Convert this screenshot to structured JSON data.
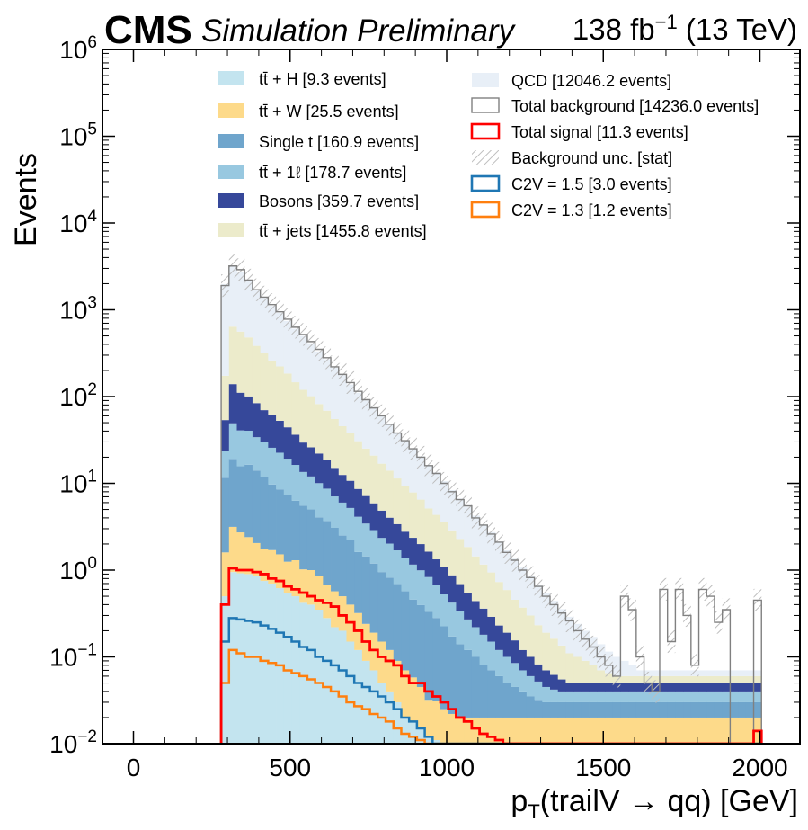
{
  "header": {
    "experiment": "CMS",
    "status": "Simulation Preliminary",
    "lumi_value": "138 fb",
    "lumi_exp": "−1",
    "energy": " (13 TeV)"
  },
  "chart_data": {
    "type": "bar",
    "stacked": true,
    "xlabel": "p_T(trailV → qq) [GeV]",
    "ylabel": "Events",
    "xlim": [
      -100,
      2090
    ],
    "ylim": [
      0.01,
      1000000
    ],
    "yscale": "log",
    "xticks": [
      0,
      500,
      1000,
      1500,
      2000
    ],
    "ytick_exponents": [
      -2,
      -1,
      0,
      1,
      2,
      3,
      4,
      5,
      6
    ],
    "legend_placement": "top, two columns",
    "bin_width": 25,
    "bin_start": 280,
    "colors": {
      "ttH": "#c3e4ef",
      "ttW": "#fdda8a",
      "singlet": "#6fa5cc",
      "ttl": "#98c8e0",
      "bosons": "#36489a",
      "ttjets": "#ecebcb",
      "qcd": "#e8eff7",
      "total_bkg": "#808080",
      "total_sig": "#ff0000",
      "c2v15": "#1f77b4",
      "c2v13": "#ff7f0e",
      "unc": "#c8c8c8"
    },
    "series": [
      {
        "name": "tt̄ + H [9.3 events]",
        "key": "ttH",
        "values": [
          0.5,
          0.95,
          0.92,
          0.9,
          0.85,
          0.75,
          0.7,
          0.62,
          0.55,
          0.5,
          0.42,
          0.4,
          0.35,
          0.28,
          0.22,
          0.2,
          0.15,
          0.12,
          0.09,
          0.07,
          0.05,
          0.04,
          0.03,
          0.02,
          0.018,
          0.015,
          0.012,
          0.011,
          0.01,
          0.01,
          0.01,
          0.01,
          0.01,
          0.01,
          0.01,
          0.01,
          0.01,
          0.01,
          0.01,
          0.01,
          0.01,
          0.01,
          0.01,
          0.01,
          0.01,
          0.01,
          0.01,
          0.01,
          0.01,
          0.01,
          0.01,
          0.01,
          0.01,
          0.01,
          0.01,
          0.01,
          0.01,
          0.01,
          0.01,
          0.01,
          0.01,
          0.01,
          0.01,
          0.01,
          0.01,
          0.01,
          0.01,
          0.01,
          0.01
        ]
      },
      {
        "name": "tt̄ + W [25.5 events]",
        "key": "ttW",
        "values": [
          1.1,
          2.2,
          1.8,
          1.5,
          1.2,
          1.0,
          1.0,
          0.9,
          0.7,
          0.8,
          0.6,
          0.6,
          0.5,
          0.4,
          0.35,
          0.3,
          0.25,
          0.2,
          0.15,
          0.12,
          0.1,
          0.08,
          0.06,
          0.05,
          0.04,
          0.03,
          0.02,
          0.02,
          0.015,
          0.012,
          0.01,
          0.01,
          0.01,
          0.01,
          0.01,
          0.01,
          0.01,
          0.01,
          0.01,
          0.01,
          0.01,
          0.01,
          0.01,
          0.01,
          0.01,
          0.01,
          0.01,
          0.01,
          0.01,
          0.01,
          0.01,
          0.01,
          0.01,
          0.01,
          0.01,
          0.01,
          0.01,
          0.01,
          0.01,
          0.01,
          0.01,
          0.01,
          0.01,
          0.01,
          0.01,
          0.01,
          0.01,
          0.01,
          0.01
        ]
      },
      {
        "name": "Single t [160.9 events]",
        "key": "singlet",
        "values": [
          10,
          16,
          13,
          14,
          12,
          10,
          8,
          7,
          6,
          5,
          4.5,
          4,
          3.2,
          3,
          2.5,
          2,
          1.8,
          1.3,
          1.2,
          1.0,
          0.8,
          0.7,
          0.6,
          0.5,
          0.4,
          0.35,
          0.3,
          0.25,
          0.2,
          0.15,
          0.12,
          0.1,
          0.08,
          0.06,
          0.05,
          0.04,
          0.03,
          0.025,
          0.02,
          0.015,
          0.012,
          0.01,
          0.01,
          0.01,
          0.01,
          0.01,
          0.01,
          0.01,
          0.01,
          0.01,
          0.01,
          0.01,
          0.01,
          0.01,
          0.01,
          0.01,
          0.01,
          0.01,
          0.01,
          0.01,
          0.01,
          0.01,
          0.01,
          0.01,
          0.01,
          0.01,
          0.01,
          0.01,
          0.01
        ]
      },
      {
        "name": "tt̄ + 1ℓ [178.7 events]",
        "key": "ttl",
        "values": [
          12,
          30,
          25,
          24,
          20,
          18,
          16,
          14,
          12,
          10,
          8,
          7,
          6,
          5,
          4,
          3.5,
          3,
          2.5,
          2,
          1.7,
          1.4,
          1.2,
          1.0,
          0.8,
          0.7,
          0.6,
          0.5,
          0.4,
          0.3,
          0.25,
          0.2,
          0.15,
          0.12,
          0.1,
          0.08,
          0.06,
          0.05,
          0.04,
          0.03,
          0.025,
          0.02,
          0.015,
          0.012,
          0.01,
          0.01,
          0.01,
          0.01,
          0.01,
          0.01,
          0.01,
          0.01,
          0.01,
          0.01,
          0.01,
          0.01,
          0.01,
          0.01,
          0.01,
          0.01,
          0.01,
          0.01,
          0.01,
          0.01,
          0.01,
          0.01,
          0.01,
          0.01,
          0.01,
          0.01
        ]
      },
      {
        "name": "Bosons [359.7 events]",
        "key": "bosons",
        "values": [
          30,
          90,
          70,
          60,
          50,
          40,
          35,
          30,
          25,
          20,
          16,
          14,
          12,
          10,
          8,
          6.5,
          5.5,
          4.5,
          3.7,
          3.0,
          2.5,
          2.0,
          1.7,
          1.4,
          1.2,
          1.0,
          0.8,
          0.65,
          0.55,
          0.45,
          0.35,
          0.28,
          0.22,
          0.18,
          0.14,
          0.11,
          0.09,
          0.07,
          0.05,
          0.04,
          0.03,
          0.025,
          0.02,
          0.015,
          0.01,
          0.01,
          0.01,
          0.01,
          0.01,
          0.01,
          0.01,
          0.01,
          0.01,
          0.01,
          0.01,
          0.01,
          0.01,
          0.01,
          0.01,
          0.01,
          0.01,
          0.01,
          0.01,
          0.01,
          0.01,
          0.01,
          0.01,
          0.01,
          0.01
        ]
      },
      {
        "name": "tt̄ + jets [1455.8 events]",
        "key": "ttjets",
        "values": [
          120,
          500,
          450,
          380,
          300,
          250,
          200,
          170,
          140,
          110,
          90,
          75,
          60,
          50,
          40,
          33,
          27,
          22,
          18,
          15,
          12,
          10,
          8,
          6.5,
          5.5,
          4.5,
          3.5,
          3,
          2.5,
          2,
          1.6,
          1.3,
          1.0,
          0.8,
          0.65,
          0.5,
          0.4,
          0.3,
          0.25,
          0.2,
          0.15,
          0.12,
          0.1,
          0.08,
          0.06,
          0.05,
          0.04,
          0.03,
          0.02,
          0.015,
          0.01,
          0.01,
          0.01,
          0.01,
          0.01,
          0.01,
          0.01,
          0.01,
          0.01,
          0.01,
          0.01,
          0.01,
          0.01,
          0.01,
          0.01,
          0.01,
          0.01,
          0.01,
          0.01
        ]
      },
      {
        "name": "QCD [12046.2 events]",
        "key": "qcd",
        "values": [
          1800,
          2500,
          2200,
          1700,
          1300,
          1050,
          850,
          700,
          560,
          460,
          380,
          310,
          250,
          200,
          160,
          130,
          100,
          80,
          65,
          52,
          42,
          34,
          27,
          22,
          17,
          14,
          11,
          9,
          7,
          5.5,
          4.4,
          3.5,
          2.8,
          2.2,
          1.8,
          1.4,
          1.1,
          0.9,
          0.7,
          0.55,
          0.45,
          0.35,
          0.28,
          0.22,
          0.18,
          0.14,
          0.11,
          0.09,
          0.07,
          0.05,
          0.04,
          0.03,
          0.02,
          0.01,
          0.01,
          0.01,
          0.01,
          0.01,
          0.01,
          0.01,
          0.01,
          0.01,
          0.01,
          0.01,
          0.01,
          0.01,
          0.01,
          0.01,
          0.01
        ]
      },
      {
        "name": "Total background [14236.0 events]",
        "key": "total_bkg"
      },
      {
        "name": "Total signal [11.3 events]",
        "key": "total_sig"
      },
      {
        "name": "Background unc. [stat]",
        "key": "unc"
      },
      {
        "name": "C2V = 1.5 [3.0 events]",
        "key": "c2v15"
      },
      {
        "name": "C2V = 1.3 [1.2 events]",
        "key": "c2v13"
      }
    ],
    "total_background": [
      1900,
      3200,
      2900,
      2200,
      1700,
      1400,
      1150,
      950,
      780,
      630,
      520,
      430,
      350,
      280,
      220,
      180,
      145,
      115,
      92,
      74,
      60,
      48,
      38,
      31,
      25,
      20,
      16,
      13,
      10,
      8,
      6.5,
      5.5,
      4,
      3.3,
      2.6,
      2.1,
      1.6,
      1.3,
      1.0,
      0.82,
      0.65,
      0.5,
      0.4,
      0.32,
      0.26,
      0.2,
      0.16,
      0.13,
      0.1,
      0.08,
      0.06,
      0.5,
      0.35,
      0.1,
      0.05,
      0.04,
      0.6,
      0.15,
      0.6,
      0.3,
      0.08,
      0.6,
      0.5,
      0.25,
      0.35,
      0.01,
      0.01,
      0.01,
      0.45
    ],
    "total_signal": [
      0.4,
      1.05,
      1.0,
      1.0,
      0.95,
      0.9,
      0.8,
      0.75,
      0.65,
      0.6,
      0.55,
      0.5,
      0.45,
      0.42,
      0.38,
      0.3,
      0.25,
      0.2,
      0.15,
      0.12,
      0.1,
      0.09,
      0.08,
      0.06,
      0.05,
      0.05,
      0.04,
      0.035,
      0.03,
      0.025,
      0.02,
      0.018,
      0.015,
      0.013,
      0.012,
      0.011,
      0.01,
      0.01,
      0.01,
      0.01,
      0.01,
      0.01,
      0.01,
      0.01,
      0.01,
      0.01,
      0.01,
      0.01,
      0.01,
      0.01,
      0.01,
      0.01,
      0.01,
      0.01,
      0.01,
      0.01,
      0.01,
      0.01,
      0.01,
      0.01,
      0.01,
      0.01,
      0.01,
      0.01,
      0.01,
      0.01,
      0.01,
      0.01,
      0.014
    ],
    "c2v15": [
      0.15,
      0.28,
      0.27,
      0.26,
      0.25,
      0.23,
      0.21,
      0.19,
      0.17,
      0.15,
      0.13,
      0.12,
      0.1,
      0.09,
      0.08,
      0.07,
      0.06,
      0.05,
      0.045,
      0.04,
      0.035,
      0.03,
      0.025,
      0.02,
      0.018,
      0.015,
      0.012,
      0.01,
      0.01,
      0.01,
      0.01,
      0.01,
      0.01,
      0.01,
      0.01,
      0.01,
      0.01,
      0.01,
      0.01,
      0.01,
      0.01,
      0.01,
      0.01,
      0.01,
      0.01,
      0.01,
      0.01,
      0.01,
      0.01,
      0.01,
      0.01,
      0.01,
      0.01,
      0.01,
      0.01,
      0.01,
      0.01,
      0.01,
      0.01,
      0.01,
      0.01,
      0.01,
      0.01,
      0.01,
      0.01,
      0.01,
      0.01,
      0.01,
      0.01
    ],
    "c2v13": [
      0.05,
      0.12,
      0.11,
      0.1,
      0.1,
      0.09,
      0.085,
      0.08,
      0.07,
      0.065,
      0.06,
      0.055,
      0.05,
      0.045,
      0.04,
      0.035,
      0.03,
      0.027,
      0.025,
      0.022,
      0.02,
      0.018,
      0.015,
      0.013,
      0.012,
      0.011,
      0.01,
      0.01,
      0.01,
      0.01,
      0.01,
      0.01,
      0.01,
      0.01,
      0.01,
      0.01,
      0.01,
      0.01,
      0.01,
      0.01,
      0.01,
      0.01,
      0.01,
      0.01,
      0.01,
      0.01,
      0.01,
      0.01,
      0.01,
      0.01,
      0.01,
      0.01,
      0.01,
      0.01,
      0.01,
      0.01,
      0.01,
      0.01,
      0.01,
      0.01,
      0.01,
      0.01,
      0.01,
      0.01,
      0.01,
      0.01,
      0.01,
      0.01,
      0.01
    ]
  }
}
